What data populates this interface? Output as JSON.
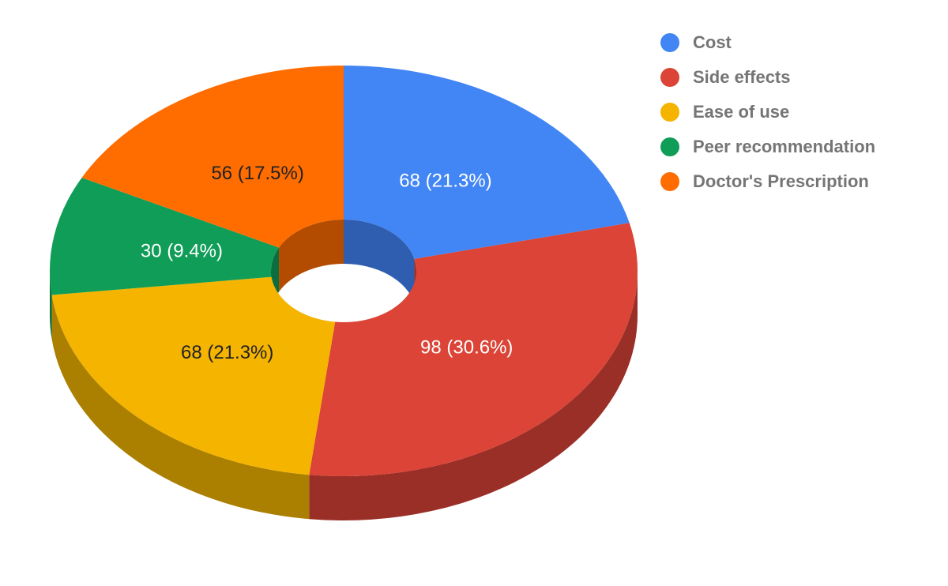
{
  "chart_data": {
    "type": "pie",
    "style": "3d-donut",
    "legend_position": "right",
    "slices": [
      {
        "name": "Cost",
        "value": 68,
        "percent": 21.3,
        "label": "68 (21.3%)",
        "color": "#4285F4",
        "side_color": "#2F5DAF",
        "label_color": "#FFFFFF"
      },
      {
        "name": "Side effects",
        "value": 98,
        "percent": 30.6,
        "label": "98 (30.6%)",
        "color": "#DB4437",
        "side_color": "#9A2F27",
        "label_color": "#FFFFFF"
      },
      {
        "name": "Ease of use",
        "value": 68,
        "percent": 21.3,
        "label": "68 (21.3%)",
        "color": "#F4B400",
        "side_color": "#AB7F00",
        "label_color": "#222222"
      },
      {
        "name": "Peer recommendation",
        "value": 30,
        "percent": 9.4,
        "label": "30 (9.4%)",
        "color": "#0F9D58",
        "side_color": "#0A6E3E",
        "label_color": "#FFFFFF"
      },
      {
        "name": "Doctor's Prescription",
        "value": 56,
        "percent": 17.5,
        "label": "56 (17.5%)",
        "color": "#FF6D00",
        "side_color": "#B34C00",
        "label_color": "#222222"
      }
    ]
  }
}
